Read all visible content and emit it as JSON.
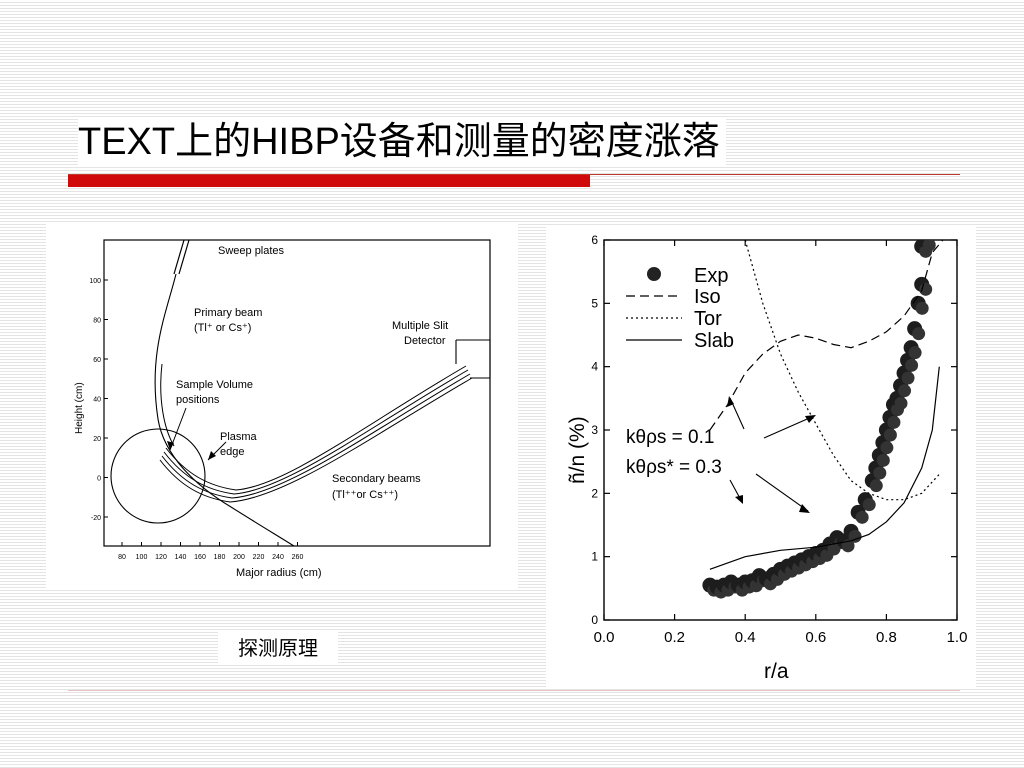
{
  "slide": {
    "title": "TEXT上的HIBP设备和测量的密度涨落",
    "caption": "探测原理"
  },
  "colors": {
    "accent_red": "#d00a0a",
    "background_stripe": "#e4e4e4"
  },
  "apparatus_figure": {
    "labels": {
      "sweep_plates": "Sweep plates",
      "primary_beam": "Primary beam",
      "primary_beam_ions": "(Tl⁺ or Cs⁺)",
      "multiple_slit": "Multiple Slit",
      "detector": "Detector",
      "sample_volume": "Sample Volume",
      "positions": "positions",
      "plasma": "Plasma",
      "edge": "edge",
      "secondary_beams": "Secondary beams",
      "secondary_beams_ions": "(Tl⁺⁺or Cs⁺⁺)"
    },
    "xlabel": "Major radius (cm)",
    "ylabel": "Height (cm)",
    "x_ticks": [
      "80",
      "100",
      "120",
      "140",
      "160",
      "180",
      "200",
      "220",
      "240",
      "260"
    ],
    "y_ticks": [
      "100",
      "80",
      "60",
      "40",
      "20",
      "0",
      "-20"
    ]
  },
  "chart_data": {
    "type": "line",
    "xlabel": "r/a",
    "ylabel": "ñ/n (%)",
    "xlim": [
      0.0,
      1.0
    ],
    "ylim": [
      0,
      6
    ],
    "x_ticks": [
      "0.0",
      "0.2",
      "0.4",
      "0.6",
      "0.8",
      "1.0"
    ],
    "y_ticks": [
      "0",
      "1",
      "2",
      "3",
      "4",
      "5",
      "6"
    ],
    "legend": [
      "Exp",
      "Iso",
      "Tor",
      "Slab"
    ],
    "legend_position": "top-left",
    "annotations": [
      "kθρs = 0.1",
      "kθρs* = 0.3"
    ],
    "series": [
      {
        "name": "Exp",
        "style": "filled-dots",
        "x": [
          0.3,
          0.32,
          0.34,
          0.36,
          0.38,
          0.4,
          0.42,
          0.44,
          0.46,
          0.48,
          0.5,
          0.52,
          0.54,
          0.56,
          0.58,
          0.6,
          0.62,
          0.64,
          0.66,
          0.68,
          0.7,
          0.72,
          0.74,
          0.76,
          0.77,
          0.78,
          0.79,
          0.8,
          0.81,
          0.82,
          0.83,
          0.84,
          0.85,
          0.86,
          0.87,
          0.88,
          0.89,
          0.9,
          0.9,
          0.91
        ],
        "y": [
          0.55,
          0.52,
          0.55,
          0.6,
          0.55,
          0.6,
          0.62,
          0.7,
          0.65,
          0.72,
          0.8,
          0.85,
          0.9,
          0.95,
          1.0,
          1.05,
          1.1,
          1.2,
          1.3,
          1.25,
          1.4,
          1.7,
          1.9,
          2.2,
          2.4,
          2.6,
          2.8,
          3.0,
          3.2,
          3.4,
          3.5,
          3.7,
          3.9,
          4.1,
          4.3,
          4.6,
          5.0,
          5.3,
          5.9,
          6.0
        ]
      },
      {
        "name": "Iso",
        "style": "dashed",
        "x": [
          0.3,
          0.35,
          0.4,
          0.45,
          0.5,
          0.55,
          0.6,
          0.65,
          0.7,
          0.75,
          0.8,
          0.85,
          0.9,
          0.93,
          0.96
        ],
        "y": [
          3.0,
          3.4,
          3.9,
          4.2,
          4.4,
          4.5,
          4.45,
          4.35,
          4.3,
          4.4,
          4.55,
          4.8,
          5.2,
          5.8,
          6.0
        ]
      },
      {
        "name": "Tor",
        "style": "dotted",
        "x": [
          0.4,
          0.45,
          0.5,
          0.55,
          0.6,
          0.65,
          0.7,
          0.75,
          0.8,
          0.85,
          0.9,
          0.95
        ],
        "y": [
          6.0,
          5.0,
          4.2,
          3.6,
          3.1,
          2.6,
          2.2,
          2.0,
          1.9,
          1.9,
          2.0,
          2.3
        ]
      },
      {
        "name": "Slab",
        "style": "solid",
        "x": [
          0.3,
          0.4,
          0.5,
          0.6,
          0.7,
          0.75,
          0.8,
          0.85,
          0.9,
          0.93,
          0.95
        ],
        "y": [
          0.8,
          1.0,
          1.1,
          1.15,
          1.25,
          1.35,
          1.55,
          1.85,
          2.4,
          3.0,
          4.0
        ]
      }
    ]
  }
}
